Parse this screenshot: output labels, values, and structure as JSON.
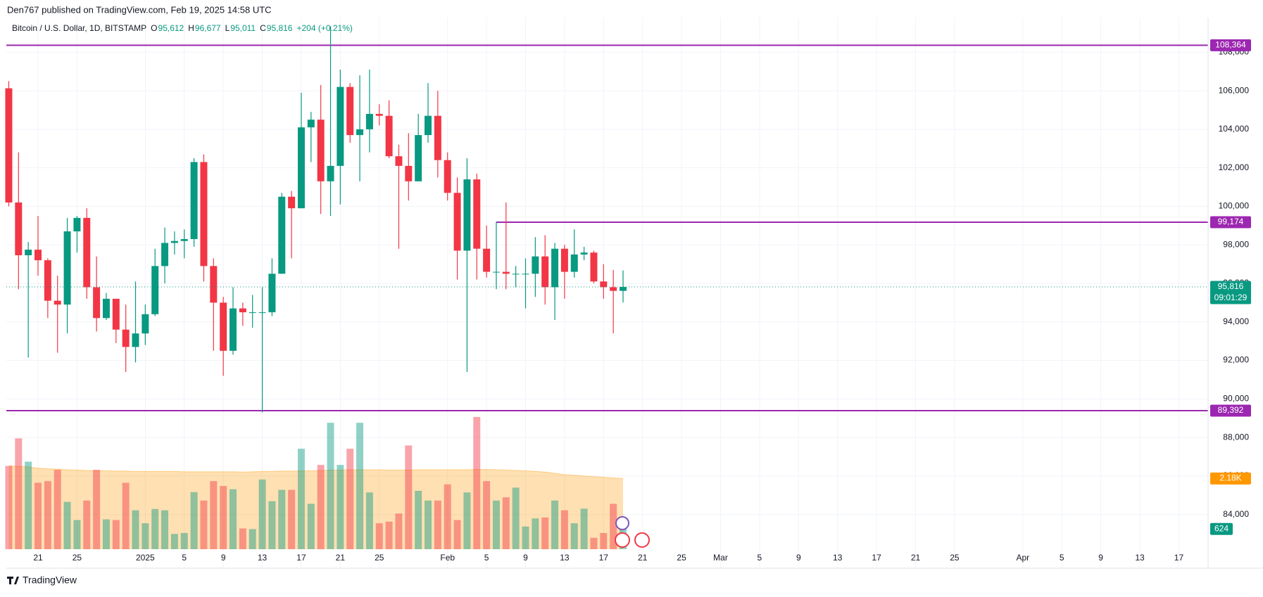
{
  "header": {
    "published": "Den767 published on TradingView.com, Feb 19, 2025 14:58 UTC"
  },
  "chart_data": {
    "type": "candlestick",
    "title": "Bitcoin / U.S. Dollar, 1D, BITSTAMP",
    "legend_values": [
      {
        "key": "O",
        "text": "95,612"
      },
      {
        "key": "H",
        "text": "96,677"
      },
      {
        "key": "L",
        "text": "95,011"
      },
      {
        "key": "C",
        "text": "95,816"
      },
      {
        "text": "+204 (+0.21%)"
      }
    ],
    "x": [
      0,
      1,
      2,
      3,
      4,
      5,
      6,
      7,
      8,
      9,
      10,
      11,
      12,
      13,
      14,
      15,
      16,
      17,
      18,
      19,
      20,
      21,
      22,
      23,
      24,
      25,
      26,
      27,
      28,
      29,
      30,
      31,
      32,
      33,
      34,
      35,
      36,
      37,
      38,
      39,
      40,
      41,
      42,
      43,
      44,
      45,
      46,
      47,
      48,
      49,
      50,
      51,
      52,
      53,
      54,
      55,
      56,
      57,
      58,
      59,
      60,
      61,
      62,
      63
    ],
    "open": [
      106130,
      100200,
      97460,
      97750,
      97200,
      95100,
      94900,
      98700,
      99400,
      95800,
      94200,
      95200,
      93600,
      92700,
      93400,
      94400,
      96900,
      98100,
      98200,
      98300,
      102300,
      96900,
      95000,
      92500,
      94700,
      94500,
      94500,
      94500,
      96500,
      100500,
      99900,
      104100,
      104500,
      101300,
      102100,
      106200,
      103700,
      104000,
      104800,
      104700,
      102600,
      102100,
      101300,
      103700,
      104700,
      102400,
      100700,
      97700,
      101400,
      97800,
      96600,
      96600,
      96500,
      96500,
      96500,
      97400,
      95800,
      97800,
      96600,
      97500,
      97600,
      96100,
      95800,
      95612
    ],
    "high": [
      106500,
      102800,
      98150,
      99500,
      97300,
      96400,
      99400,
      99500,
      99900,
      97400,
      95500,
      95200,
      94900,
      96100,
      94900,
      97800,
      98900,
      98700,
      98800,
      102500,
      102700,
      97300,
      95300,
      95800,
      95000,
      95400,
      95800,
      97300,
      100700,
      100800,
      105900,
      104900,
      106300,
      109350,
      107100,
      106400,
      106800,
      107100,
      105300,
      105500,
      103200,
      103800,
      104800,
      106400,
      106000,
      102800,
      101500,
      102500,
      101700,
      99000,
      99200,
      100200,
      96900,
      97300,
      98400,
      98500,
      98100,
      98000,
      98800,
      97900,
      97700,
      97000,
      96700,
      96677
    ],
    "low": [
      100000,
      95700,
      92150,
      96400,
      94200,
      92400,
      93400,
      97600,
      95200,
      93500,
      94100,
      92900,
      91400,
      91900,
      92800,
      94300,
      96000,
      97500,
      97300,
      97900,
      96100,
      92500,
      91200,
      92300,
      93800,
      93700,
      89300,
      94300,
      96500,
      97300,
      99900,
      102300,
      99600,
      99500,
      100100,
      103300,
      101300,
      102800,
      104200,
      102500,
      97800,
      100300,
      101300,
      103300,
      101500,
      100300,
      96200,
      91400,
      96200,
      96300,
      95700,
      95700,
      95800,
      94700,
      95300,
      94900,
      94100,
      95200,
      96300,
      97200,
      96000,
      95200,
      93400,
      95011
    ],
    "close": [
      100200,
      97460,
      97750,
      97200,
      95100,
      94900,
      98700,
      99400,
      95800,
      94200,
      95200,
      93600,
      92700,
      93400,
      94400,
      96900,
      98100,
      98200,
      98300,
      102300,
      96900,
      95000,
      92500,
      94700,
      94500,
      94500,
      94500,
      96500,
      100500,
      99900,
      104100,
      104500,
      101300,
      102100,
      106200,
      103700,
      104000,
      104800,
      104700,
      102600,
      102100,
      101300,
      103700,
      104700,
      102400,
      100700,
      97700,
      101400,
      97800,
      96600,
      96600,
      96500,
      96500,
      96500,
      97400,
      95800,
      97800,
      96600,
      97500,
      97600,
      96100,
      95800,
      95612,
      95816
    ],
    "up_color": "#089981",
    "down_color": "#f23645",
    "xlim": [
      -0.25,
      123
    ],
    "xticks": [
      {
        "value": 3,
        "label": "21"
      },
      {
        "value": 7,
        "label": "25"
      },
      {
        "value": 14,
        "label": "2025"
      },
      {
        "value": 18,
        "label": "5"
      },
      {
        "value": 22,
        "label": "9"
      },
      {
        "value": 26,
        "label": "13"
      },
      {
        "value": 30,
        "label": "17"
      },
      {
        "value": 34,
        "label": "21"
      },
      {
        "value": 38,
        "label": "25"
      },
      {
        "value": 45,
        "label": "Feb"
      },
      {
        "value": 49,
        "label": "5"
      },
      {
        "value": 53,
        "label": "9"
      },
      {
        "value": 57,
        "label": "13"
      },
      {
        "value": 61,
        "label": "17"
      },
      {
        "value": 65,
        "label": "21"
      },
      {
        "value": 69,
        "label": "25"
      },
      {
        "value": 73,
        "label": "Mar"
      },
      {
        "value": 77,
        "label": "5"
      },
      {
        "value": 81,
        "label": "9"
      },
      {
        "value": 85,
        "label": "13"
      },
      {
        "value": 89,
        "label": "17"
      },
      {
        "value": 93,
        "label": "21"
      },
      {
        "value": 97,
        "label": "25"
      },
      {
        "value": 104,
        "label": "Apr"
      },
      {
        "value": 108,
        "label": "5"
      },
      {
        "value": 112,
        "label": "9"
      },
      {
        "value": 116,
        "label": "13"
      },
      {
        "value": 120,
        "label": "17"
      }
    ],
    "ylim": [
      82200,
      109800
    ],
    "yticks": [
      {
        "value": 84000,
        "label": "84,000"
      },
      {
        "value": 86000,
        "label": "86,000"
      },
      {
        "value": 88000,
        "label": "88,000"
      },
      {
        "value": 90000,
        "label": "90,000"
      },
      {
        "value": 92000,
        "label": "92,000"
      },
      {
        "value": 94000,
        "label": "94,000"
      },
      {
        "value": 96000,
        "label": "96,000"
      },
      {
        "value": 98000,
        "label": "98,000"
      },
      {
        "value": 100000,
        "label": "100,000"
      },
      {
        "value": 102000,
        "label": "102,000"
      },
      {
        "value": 104000,
        "label": "104,000"
      },
      {
        "value": 106000,
        "label": "106,000"
      },
      {
        "value": 108000,
        "label": "108,000"
      }
    ],
    "grid": true,
    "hlines": [
      {
        "value": 108364,
        "label": "108,364"
      },
      {
        "value": 99174,
        "label": "99,174",
        "start": 50
      },
      {
        "value": 89392,
        "label": "89,392"
      }
    ],
    "hline_color": "#9c27b0",
    "last_price": {
      "value": 95816,
      "label": "95,816",
      "countdown": "09:01:29"
    },
    "y2lim": [
      0,
      16400
    ],
    "volume": {
      "values": [
        2570,
        3420,
        2700,
        2050,
        2100,
        2450,
        1460,
        900,
        1500,
        2450,
        920,
        900,
        2050,
        1200,
        800,
        1240,
        1200,
        470,
        500,
        1760,
        1500,
        2100,
        1950,
        1850,
        640,
        620,
        2150,
        1480,
        1830,
        1830,
        3100,
        1400,
        2600,
        3900,
        2600,
        3100,
        3900,
        1750,
        800,
        850,
        1100,
        3200,
        1800,
        1500,
        1500,
        2000,
        900,
        1750,
        4080,
        2100,
        1500,
        1600,
        1900,
        700,
        950,
        980,
        1500,
        1200,
        800,
        1250,
        350,
        500,
        1400,
        624
      ],
      "ma": [
        2570,
        2560,
        2540,
        2500,
        2480,
        2470,
        2450,
        2440,
        2430,
        2420,
        2420,
        2410,
        2410,
        2400,
        2400,
        2400,
        2400,
        2400,
        2390,
        2390,
        2390,
        2390,
        2390,
        2390,
        2380,
        2390,
        2400,
        2400,
        2410,
        2410,
        2420,
        2420,
        2430,
        2440,
        2440,
        2450,
        2450,
        2450,
        2450,
        2440,
        2440,
        2440,
        2450,
        2450,
        2450,
        2450,
        2450,
        2450,
        2460,
        2460,
        2450,
        2440,
        2430,
        2420,
        2400,
        2380,
        2340,
        2300,
        2280,
        2260,
        2240,
        2220,
        2200,
        2180
      ],
      "ma_color": "#ff9800",
      "ma_label": {
        "value": 2180,
        "label": "2.18K"
      }
    }
  },
  "footer": {
    "brand": "TradingView"
  }
}
